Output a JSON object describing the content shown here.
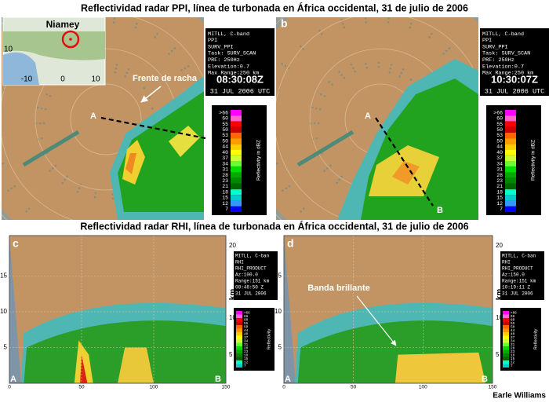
{
  "top_title": "Reflectividad radar PPI, línea de turbonada en África occidental, 31 de julio de 2006",
  "bottom_title": "Reflectividad radar RHI, línea de turbonada en África occidental, 31 de julio de 2006",
  "credit": "Earle Williams",
  "inset": {
    "place": "Niamey",
    "xticks": [
      "-10",
      "0",
      "10"
    ],
    "ytick": "10"
  },
  "panels_ppi": [
    {
      "label": "a",
      "info": [
        "MITLL, C-band",
        "PPI",
        "SURV_PPI",
        "Task: SURV_SCAN",
        "PRF: 250Hz",
        "Elevation:0.7",
        "Max Range:250 km"
      ],
      "time": "08:30:08Z",
      "date": "31 JUL 2006 UTC",
      "point_a": "A",
      "point_b": "B",
      "annotation": "Frente de racha"
    },
    {
      "label": "b",
      "info": [
        "MITLL, C-band",
        "PPI",
        "SURV_PPI",
        "Task: SURV_SCAN",
        "PRF: 250Hz",
        "Elevation:0.7",
        "Max Range:250 km"
      ],
      "time": "10:30:07Z",
      "date": "31 JUL 2006 UTC",
      "point_a": "A",
      "point_b": "B"
    }
  ],
  "panels_rhi": [
    {
      "label": "c",
      "info": [
        "MITLL, C-ban",
        "RHI",
        "RHI_PRODUCT",
        "Az:100.0",
        "Range:151 km",
        "08:48:50 Z",
        "31 JUL 2006"
      ],
      "point_a": "A",
      "point_b": "B"
    },
    {
      "label": "d",
      "info": [
        "MITLL, C-ban",
        "RHI",
        "RHI_PRODUCT",
        "Az:150.0",
        "Range:151 km",
        "10:19:11 Z",
        "31 JUL 2006"
      ],
      "point_a": "A",
      "point_b": "B",
      "annotation": "Banda brillante"
    }
  ],
  "rhi_axis": {
    "yticks": [
      "5",
      "10",
      "15"
    ],
    "xticks": [
      "0",
      "50",
      "100",
      "150"
    ],
    "right_ticks": [
      "20",
      "10",
      "5"
    ],
    "unit": "km"
  },
  "ppi_colorbar": {
    "title": "Reflectivity in dBZ",
    "labels": [
      ">66",
      "60",
      "55",
      "50",
      "53",
      "50",
      "44",
      "40",
      "37",
      "34",
      "31",
      "28",
      "23",
      "21",
      "18",
      "15",
      "12",
      "7"
    ]
  },
  "rhi_colorbar": {
    "title": "Reflectivity",
    "labels": [
      ">66",
      "66",
      "60",
      "55",
      "50",
      "44",
      "40",
      "37",
      "34",
      "31",
      "28",
      "23",
      "18",
      "15",
      "12",
      "7"
    ]
  }
}
